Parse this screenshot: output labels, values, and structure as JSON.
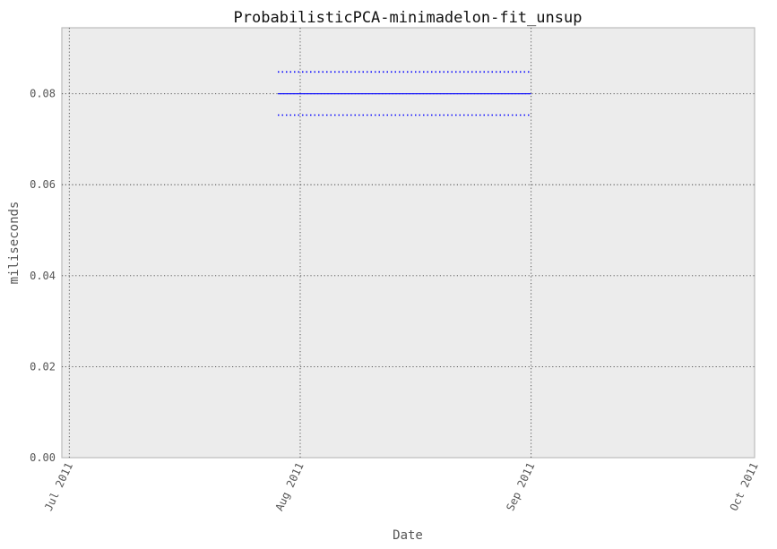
{
  "chart_data": {
    "type": "line",
    "title": "ProbabilisticPCA-minimadelon-fit_unsup",
    "xlabel": "Date",
    "ylabel": "miliseconds",
    "x_ticks": [
      "Jul 2011",
      "Aug 2011",
      "Sep 2011",
      "Oct 2011"
    ],
    "x_tick_dates": [
      "2011-07-01",
      "2011-08-01",
      "2011-09-01",
      "2011-10-01"
    ],
    "y_ticks": [
      "0.00",
      "0.02",
      "0.04",
      "0.06",
      "0.08"
    ],
    "xlim": [
      "2011-06-30",
      "2011-10-01"
    ],
    "ylim": [
      0,
      0.0945
    ],
    "grid": true,
    "series": [
      {
        "style": "solid",
        "color": "#0000ff",
        "points": [
          {
            "x": "2011-07-29",
            "y": 0.08
          },
          {
            "x": "2011-09-01",
            "y": 0.08
          }
        ]
      },
      {
        "style": "dotted",
        "color": "#0000ff",
        "points": [
          {
            "x": "2011-07-29",
            "y": 0.0848
          },
          {
            "x": "2011-09-01",
            "y": 0.0848
          }
        ]
      },
      {
        "style": "dotted",
        "color": "#0000ff",
        "points": [
          {
            "x": "2011-07-29",
            "y": 0.0753
          },
          {
            "x": "2011-09-01",
            "y": 0.0753
          }
        ]
      }
    ]
  }
}
